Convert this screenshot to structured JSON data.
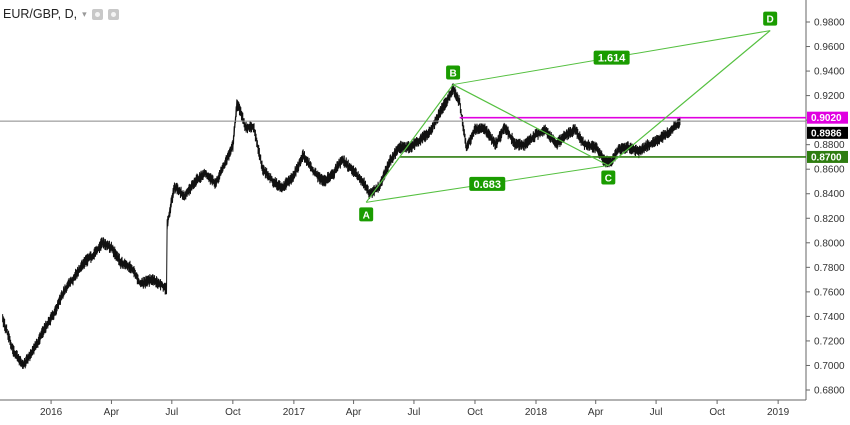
{
  "header": {
    "symbol": "EUR/GBP, D,"
  },
  "chart_data": {
    "type": "line",
    "title": "EUR/GBP, D,",
    "xlabel": "",
    "ylabel": "",
    "ylim": [
      0.67,
      1.0
    ],
    "grid": false,
    "price_ticks": [
      "0.6800",
      "0.7000",
      "0.7200",
      "0.7400",
      "0.7600",
      "0.7800",
      "0.8000",
      "0.8200",
      "0.8400",
      "0.8600",
      "0.8800",
      "0.9000",
      "0.9200",
      "0.9400",
      "0.9600",
      "0.9800"
    ],
    "time_labels": [
      {
        "label": "2016",
        "date": "2016-01-01"
      },
      {
        "label": "Apr",
        "date": "2016-04-01"
      },
      {
        "label": "Jul",
        "date": "2016-07-01"
      },
      {
        "label": "Oct",
        "date": "2016-10-01"
      },
      {
        "label": "2017",
        "date": "2017-01-01"
      },
      {
        "label": "Apr",
        "date": "2017-04-01"
      },
      {
        "label": "Jul",
        "date": "2017-07-01"
      },
      {
        "label": "Oct",
        "date": "2017-10-01"
      },
      {
        "label": "2018",
        "date": "2018-01-01"
      },
      {
        "label": "Apr",
        "date": "2018-04-01"
      },
      {
        "label": "Jul",
        "date": "2018-07-01"
      },
      {
        "label": "Oct",
        "date": "2018-10-01"
      },
      {
        "label": "2019",
        "date": "2019-01-01"
      }
    ],
    "series": [
      {
        "values": [
          [
            "2015-10-20",
            0.738
          ],
          [
            "2015-11-05",
            0.712
          ],
          [
            "2015-11-20",
            0.7
          ],
          [
            "2015-12-05",
            0.712
          ],
          [
            "2015-12-20",
            0.728
          ],
          [
            "2016-01-05",
            0.742
          ],
          [
            "2016-01-20",
            0.76
          ],
          [
            "2016-02-05",
            0.772
          ],
          [
            "2016-02-20",
            0.784
          ],
          [
            "2016-03-05",
            0.79
          ],
          [
            "2016-03-18",
            0.8
          ],
          [
            "2016-04-01",
            0.796
          ],
          [
            "2016-04-15",
            0.784
          ],
          [
            "2016-05-01",
            0.78
          ],
          [
            "2016-05-15",
            0.766
          ],
          [
            "2016-05-31",
            0.77
          ],
          [
            "2016-06-15",
            0.766
          ],
          [
            "2016-06-23",
            0.762
          ],
          [
            "2016-06-24",
            0.815
          ],
          [
            "2016-07-05",
            0.846
          ],
          [
            "2016-07-20",
            0.838
          ],
          [
            "2016-08-05",
            0.85
          ],
          [
            "2016-08-20",
            0.857
          ],
          [
            "2016-09-05",
            0.848
          ],
          [
            "2016-09-20",
            0.866
          ],
          [
            "2016-10-01",
            0.879
          ],
          [
            "2016-10-07",
            0.912
          ],
          [
            "2016-10-12",
            0.908
          ],
          [
            "2016-10-20",
            0.894
          ],
          [
            "2016-11-01",
            0.895
          ],
          [
            "2016-11-15",
            0.86
          ],
          [
            "2016-12-01",
            0.85
          ],
          [
            "2016-12-15",
            0.845
          ],
          [
            "2017-01-01",
            0.855
          ],
          [
            "2017-01-15",
            0.872
          ],
          [
            "2017-02-01",
            0.857
          ],
          [
            "2017-02-15",
            0.85
          ],
          [
            "2017-03-01",
            0.856
          ],
          [
            "2017-03-15",
            0.868
          ],
          [
            "2017-04-01",
            0.858
          ],
          [
            "2017-04-15",
            0.85
          ],
          [
            "2017-04-25",
            0.84
          ],
          [
            "2017-05-10",
            0.846
          ],
          [
            "2017-05-25",
            0.866
          ],
          [
            "2017-06-10",
            0.878
          ],
          [
            "2017-06-25",
            0.878
          ],
          [
            "2017-07-10",
            0.884
          ],
          [
            "2017-07-25",
            0.89
          ],
          [
            "2017-08-10",
            0.907
          ],
          [
            "2017-08-22",
            0.918
          ],
          [
            "2017-08-29",
            0.926
          ],
          [
            "2017-09-08",
            0.914
          ],
          [
            "2017-09-18",
            0.878
          ],
          [
            "2017-10-01",
            0.892
          ],
          [
            "2017-10-15",
            0.894
          ],
          [
            "2017-11-01",
            0.88
          ],
          [
            "2017-11-15",
            0.894
          ],
          [
            "2017-12-01",
            0.88
          ],
          [
            "2017-12-15",
            0.88
          ],
          [
            "2018-01-01",
            0.888
          ],
          [
            "2018-01-15",
            0.892
          ],
          [
            "2018-02-01",
            0.88
          ],
          [
            "2018-02-15",
            0.888
          ],
          [
            "2018-03-01",
            0.892
          ],
          [
            "2018-03-15",
            0.88
          ],
          [
            "2018-04-01",
            0.878
          ],
          [
            "2018-04-15",
            0.866
          ],
          [
            "2018-04-25",
            0.866
          ],
          [
            "2018-05-05",
            0.876
          ],
          [
            "2018-05-20",
            0.878
          ],
          [
            "2018-06-05",
            0.874
          ],
          [
            "2018-06-20",
            0.88
          ],
          [
            "2018-07-05",
            0.884
          ],
          [
            "2018-07-20",
            0.89
          ],
          [
            "2018-08-01",
            0.896
          ],
          [
            "2018-08-07",
            0.8986
          ]
        ]
      }
    ],
    "horizontal_lines": [
      {
        "price": 0.902,
        "label": "0.9020",
        "color": "#e000e0"
      },
      {
        "price": 0.87,
        "label": "0.8700",
        "color": "#2e7d10"
      }
    ],
    "last_price": {
      "price": 0.8986,
      "label": "0.8986",
      "color": "#000000"
    },
    "pattern": {
      "color": "#55c040",
      "label_color": "#1a9c00",
      "points": [
        {
          "name": "A",
          "date": "2017-04-20",
          "price": 0.833
        },
        {
          "name": "B",
          "date": "2017-08-29",
          "price": 0.929
        },
        {
          "name": "C",
          "date": "2018-04-20",
          "price": 0.863
        },
        {
          "name": "D",
          "date": "2018-12-20",
          "price": 0.973
        }
      ],
      "ratios": [
        {
          "label": "0.683",
          "between": [
            "A",
            "C"
          ]
        },
        {
          "label": "1.614",
          "between": [
            "B",
            "D"
          ]
        }
      ]
    }
  }
}
